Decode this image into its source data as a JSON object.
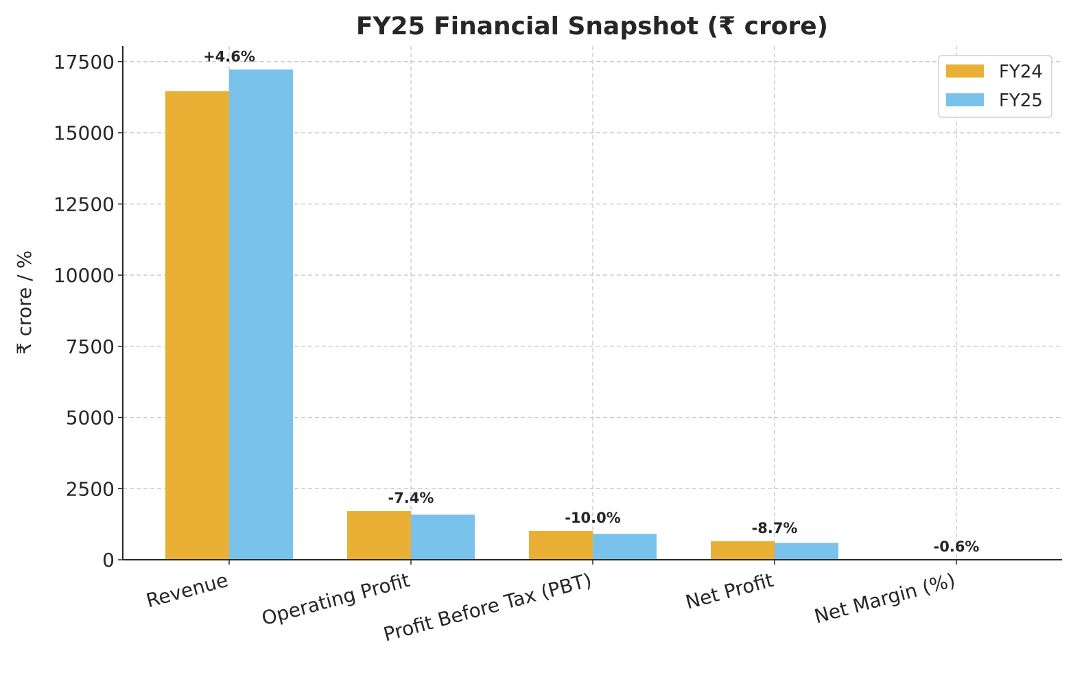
{
  "chart_data": {
    "type": "bar",
    "title": "FY25 Financial Snapshot (₹ crore)",
    "xlabel": "",
    "ylabel": "₹ crore / %",
    "categories": [
      "Revenue",
      "Operating Profit",
      "Profit Before Tax (PBT)",
      "Net Profit",
      "Net Margin (%)"
    ],
    "series": [
      {
        "name": "FY24",
        "color": "#E9B035",
        "values": [
          16460,
          1710,
          1012,
          650,
          4.0
        ]
      },
      {
        "name": "FY25",
        "color": "#79C2EC",
        "values": [
          17220,
          1584,
          911,
          594,
          3.4
        ]
      }
    ],
    "annotations": [
      "+4.6%",
      "-7.4%",
      "-10.0%",
      "-8.7%",
      "-0.6%"
    ],
    "ylim": [
      0,
      18050
    ],
    "yticks": [
      0,
      2500,
      5000,
      7500,
      10000,
      12500,
      15000,
      17500
    ],
    "grid": true,
    "legend_position": "top-right"
  }
}
